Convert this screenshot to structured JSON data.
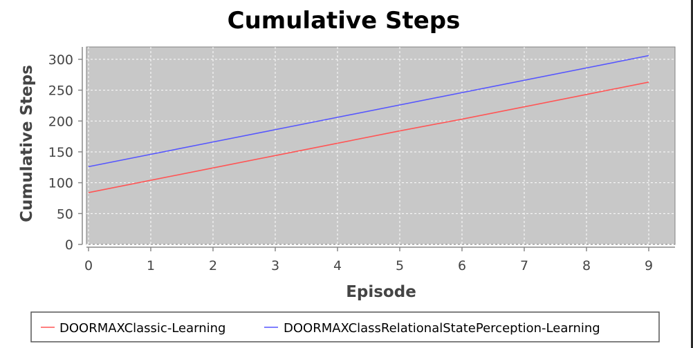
{
  "chart_data": {
    "type": "line",
    "title": "Cumulative Steps",
    "xlabel": "Episode",
    "ylabel": "Cumulative Steps",
    "xlim": [
      0,
      9.45
    ],
    "ylim": [
      0,
      320
    ],
    "x_ticks": [
      0,
      1,
      2,
      3,
      4,
      5,
      6,
      7,
      8,
      9
    ],
    "y_ticks": [
      0,
      50,
      100,
      150,
      200,
      250,
      300
    ],
    "grid": true,
    "legend_position": "bottom",
    "plot_background": "#c8c8c8",
    "series": [
      {
        "name": "DOORMAXClassic-Learning",
        "color": "#ff5555",
        "x": [
          0,
          1,
          2,
          3,
          4,
          5,
          6,
          7,
          8,
          9
        ],
        "y": [
          84,
          104,
          124,
          144,
          164,
          184,
          203,
          223,
          243,
          263
        ]
      },
      {
        "name": "DOORMAXClassRelationalStatePerception-Learning",
        "color": "#5555ff",
        "x": [
          0,
          1,
          2,
          3,
          4,
          5,
          6,
          7,
          8,
          9
        ],
        "y": [
          126,
          146,
          166,
          186,
          206,
          226,
          246,
          266,
          286,
          306
        ]
      }
    ]
  }
}
